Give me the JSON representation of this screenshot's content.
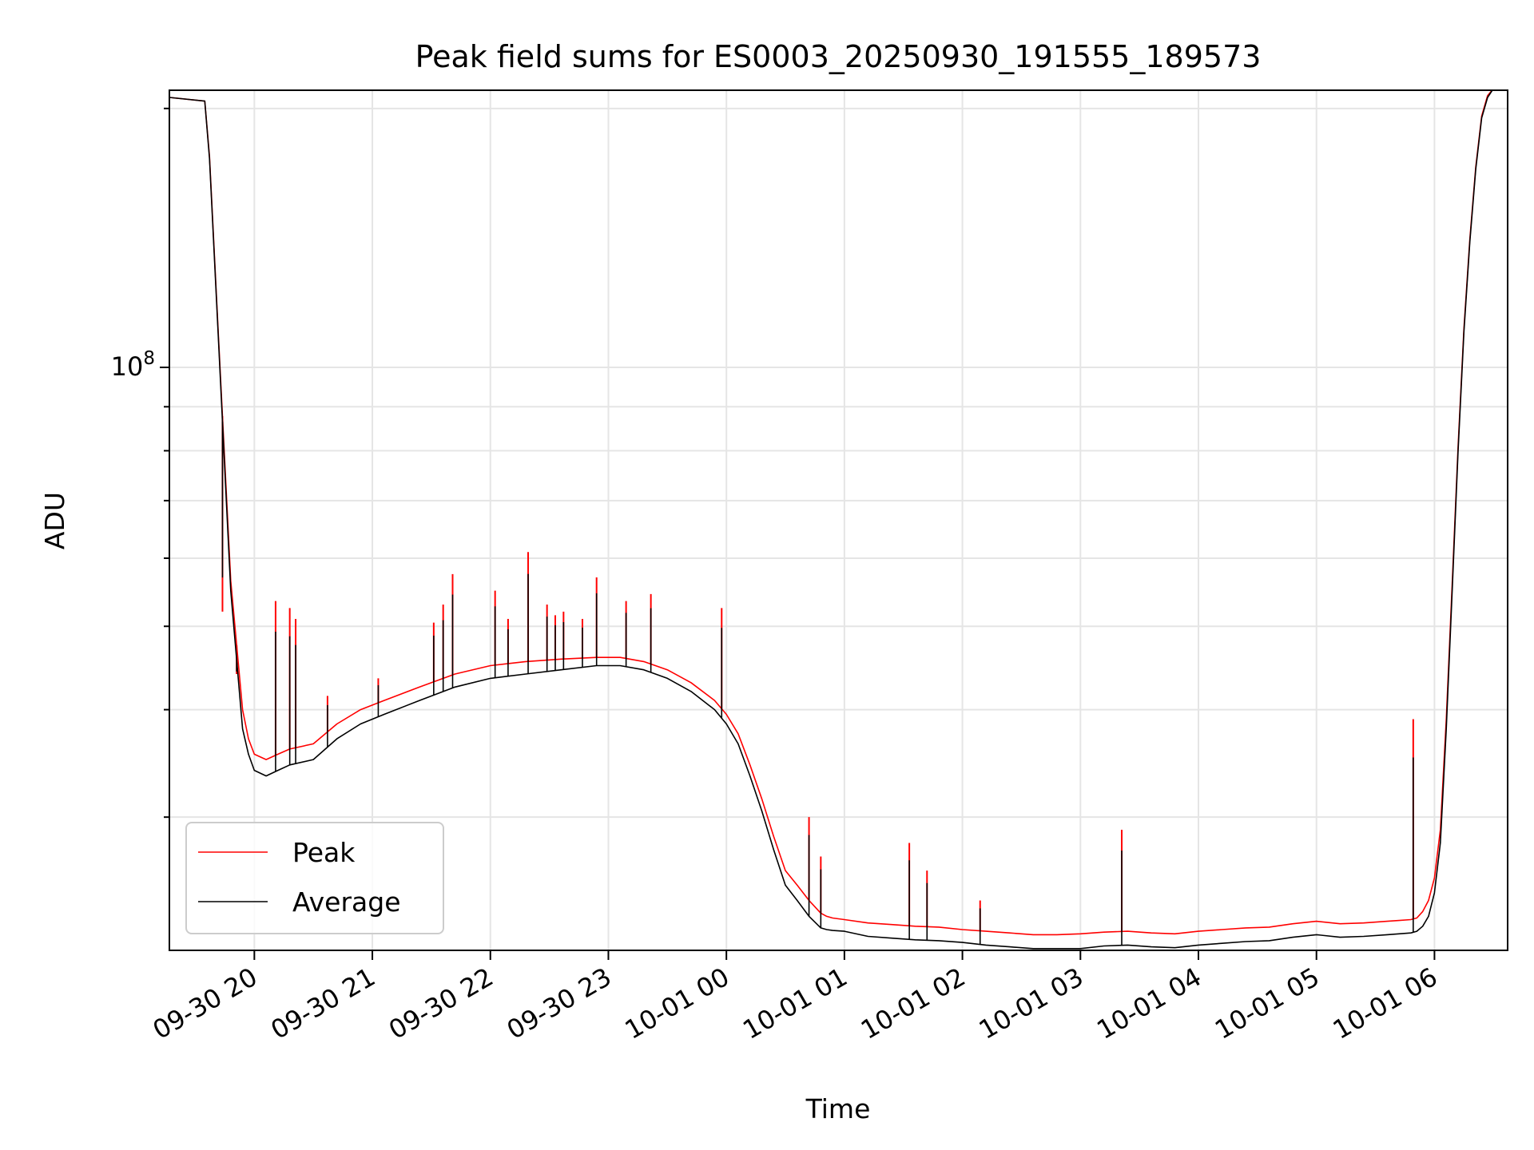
{
  "chart_data": {
    "type": "line",
    "title": "Peak field sums for ES0003_20250930_191555_189573",
    "xlabel": "Time",
    "ylabel": "ADU",
    "yscale": "log",
    "ylim": [
      21000000,
      210000000
    ],
    "xlim_hours_from_2025-09-30T19:00": [
      0.28,
      11.62
    ],
    "grid": true,
    "legend_position": "lower-left",
    "x_ticks": [
      {
        "hour": 1,
        "label": "09-30 20"
      },
      {
        "hour": 2,
        "label": "09-30 21"
      },
      {
        "hour": 3,
        "label": "09-30 22"
      },
      {
        "hour": 4,
        "label": "09-30 23"
      },
      {
        "hour": 5,
        "label": "10-01 00"
      },
      {
        "hour": 6,
        "label": "10-01 01"
      },
      {
        "hour": 7,
        "label": "10-01 02"
      },
      {
        "hour": 8,
        "label": "10-01 03"
      },
      {
        "hour": 9,
        "label": "10-01 04"
      },
      {
        "hour": 10,
        "label": "10-01 05"
      },
      {
        "hour": 11,
        "label": "10-01 06"
      }
    ],
    "y_major_ticks": [
      {
        "value": 100000000,
        "base": "10",
        "exp": "8"
      }
    ],
    "y_minor_ticks": [
      30000000,
      40000000,
      50000000,
      60000000,
      70000000,
      80000000,
      90000000,
      200000000
    ],
    "series": [
      {
        "name": "Average",
        "color": "#000000",
        "hours_from_2025-09-30T19:00": [
          0.28,
          0.58,
          0.62,
          0.7,
          0.8,
          0.9,
          0.95,
          1.0,
          1.1,
          1.2,
          1.3,
          1.5,
          1.7,
          1.9,
          2.1,
          2.4,
          2.7,
          3.0,
          3.3,
          3.6,
          3.9,
          4.1,
          4.3,
          4.5,
          4.7,
          4.9,
          5.0,
          5.1,
          5.2,
          5.3,
          5.4,
          5.5,
          5.6,
          5.7,
          5.8,
          5.85,
          5.9,
          6.0,
          6.2,
          6.4,
          6.6,
          6.8,
          7.0,
          7.2,
          7.4,
          7.6,
          7.8,
          8.0,
          8.2,
          8.4,
          8.6,
          8.8,
          9.0,
          9.2,
          9.4,
          9.6,
          9.8,
          10.0,
          10.2,
          10.4,
          10.6,
          10.7,
          10.8,
          10.85,
          10.9,
          10.95,
          11.0,
          11.05,
          11.1,
          11.15,
          11.2,
          11.25,
          11.3,
          11.35,
          11.4,
          11.45,
          11.5,
          11.55,
          11.62
        ],
        "values": [
          206000000,
          204000000,
          175000000,
          105000000,
          55000000,
          38000000,
          35500000,
          34000000,
          33500000,
          34000000,
          34500000,
          35000000,
          37000000,
          38500000,
          39500000,
          41000000,
          42500000,
          43500000,
          44000000,
          44500000,
          45000000,
          45000000,
          44500000,
          43500000,
          42000000,
          40000000,
          38500000,
          36500000,
          33500000,
          30500000,
          27500000,
          25000000,
          24000000,
          23000000,
          22300000,
          22200000,
          22150000,
          22100000,
          21800000,
          21700000,
          21600000,
          21550000,
          21450000,
          21300000,
          21200000,
          21100000,
          21100000,
          21100000,
          21250000,
          21300000,
          21200000,
          21150000,
          21300000,
          21400000,
          21500000,
          21550000,
          21750000,
          21900000,
          21750000,
          21800000,
          21900000,
          21950000,
          22000000,
          22100000,
          22400000,
          23000000,
          24500000,
          28000000,
          38000000,
          55000000,
          80000000,
          110000000,
          140000000,
          170000000,
          195000000,
          206000000,
          211000000,
          211000000,
          211000000
        ]
      },
      {
        "name": "Peak",
        "color": "#ff0000",
        "hours_from_2025-09-30T19:00": [
          0.28,
          0.58,
          0.62,
          0.7,
          0.8,
          0.9,
          0.95,
          1.0,
          1.1,
          1.2,
          1.3,
          1.5,
          1.7,
          1.9,
          2.1,
          2.4,
          2.7,
          3.0,
          3.3,
          3.6,
          3.9,
          4.1,
          4.3,
          4.5,
          4.7,
          4.9,
          5.0,
          5.1,
          5.2,
          5.3,
          5.4,
          5.5,
          5.6,
          5.7,
          5.8,
          5.85,
          5.9,
          6.0,
          6.2,
          6.4,
          6.6,
          6.8,
          7.0,
          7.2,
          7.4,
          7.6,
          7.8,
          8.0,
          8.2,
          8.4,
          8.6,
          8.8,
          9.0,
          9.2,
          9.4,
          9.6,
          9.8,
          10.0,
          10.2,
          10.4,
          10.6,
          10.7,
          10.8,
          10.85,
          10.9,
          10.95,
          11.0,
          11.05,
          11.1,
          11.15,
          11.2,
          11.25,
          11.3,
          11.35,
          11.4,
          11.45,
          11.5,
          11.55,
          11.62
        ],
        "values": [
          206000000,
          204000000,
          176000000,
          106000000,
          56500000,
          40000000,
          37000000,
          35500000,
          35000000,
          35500000,
          36000000,
          36500000,
          38500000,
          40000000,
          41000000,
          42500000,
          44000000,
          45000000,
          45500000,
          45800000,
          46000000,
          46000000,
          45500000,
          44500000,
          43000000,
          41000000,
          39500000,
          37500000,
          34500000,
          31500000,
          28500000,
          26000000,
          25000000,
          24000000,
          23200000,
          23000000,
          22900000,
          22800000,
          22600000,
          22500000,
          22400000,
          22350000,
          22200000,
          22100000,
          22000000,
          21900000,
          21900000,
          21950000,
          22050000,
          22100000,
          22000000,
          21950000,
          22100000,
          22200000,
          22300000,
          22350000,
          22550000,
          22700000,
          22550000,
          22600000,
          22700000,
          22750000,
          22800000,
          22900000,
          23300000,
          24000000,
          25500000,
          29000000,
          39000000,
          56000000,
          81000000,
          111000000,
          141000000,
          171000000,
          196000000,
          207000000,
          211000000,
          211000000,
          211000000
        ],
        "spikes": [
          {
            "hour": 0.73,
            "value": 52000000
          },
          {
            "hour": 0.85,
            "value": 44000000
          },
          {
            "hour": 1.18,
            "value": 53500000
          },
          {
            "hour": 1.3,
            "value": 52500000
          },
          {
            "hour": 1.35,
            "value": 51000000
          },
          {
            "hour": 1.62,
            "value": 41500000
          },
          {
            "hour": 2.05,
            "value": 43500000
          },
          {
            "hour": 2.52,
            "value": 50500000
          },
          {
            "hour": 2.6,
            "value": 53000000
          },
          {
            "hour": 2.68,
            "value": 57500000
          },
          {
            "hour": 3.04,
            "value": 55000000
          },
          {
            "hour": 3.15,
            "value": 51000000
          },
          {
            "hour": 3.32,
            "value": 61000000
          },
          {
            "hour": 3.48,
            "value": 53000000
          },
          {
            "hour": 3.55,
            "value": 51500000
          },
          {
            "hour": 3.62,
            "value": 52000000
          },
          {
            "hour": 3.78,
            "value": 51000000
          },
          {
            "hour": 3.9,
            "value": 57000000
          },
          {
            "hour": 4.15,
            "value": 53500000
          },
          {
            "hour": 4.36,
            "value": 54500000
          },
          {
            "hour": 4.96,
            "value": 52500000
          },
          {
            "hour": 5.7,
            "value": 30000000
          },
          {
            "hour": 5.8,
            "value": 27000000
          },
          {
            "hour": 6.55,
            "value": 28000000
          },
          {
            "hour": 6.7,
            "value": 26000000
          },
          {
            "hour": 7.15,
            "value": 24000000
          },
          {
            "hour": 8.35,
            "value": 29000000
          },
          {
            "hour": 10.82,
            "value": 39000000
          }
        ]
      }
    ]
  }
}
